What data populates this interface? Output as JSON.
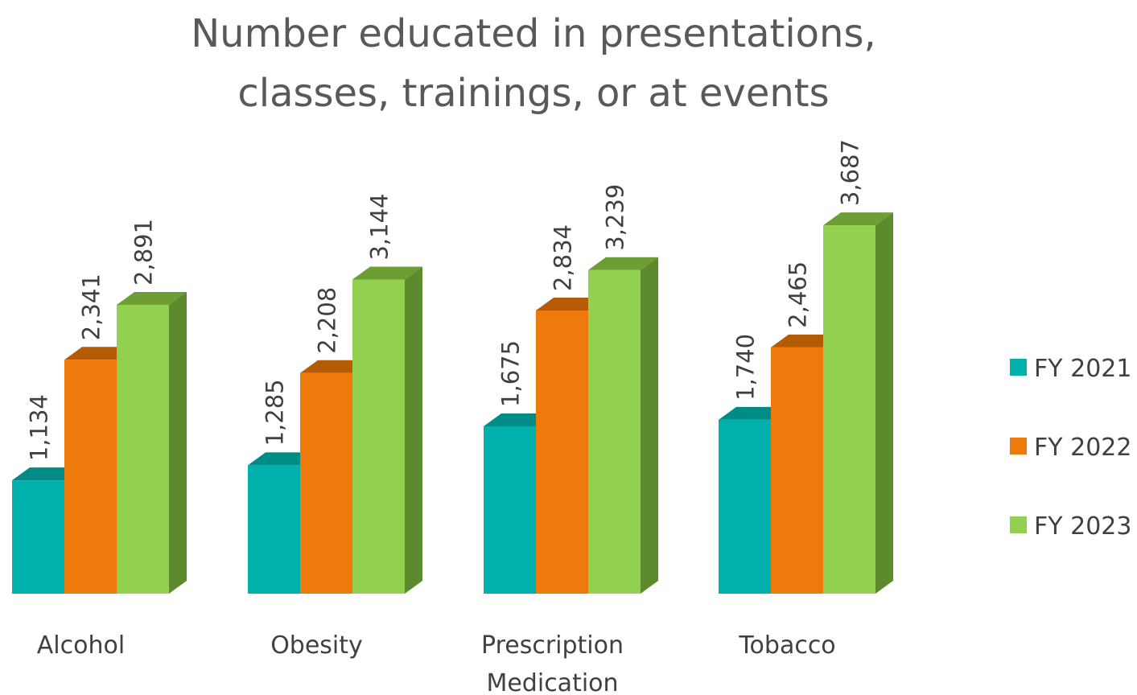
{
  "chart_data": {
    "type": "bar",
    "title_lines": [
      "Number educated in presentations,",
      "classes, trainings, or at events"
    ],
    "xlabel": "",
    "ylabel": "",
    "ylim": [
      0,
      4000
    ],
    "grid": false,
    "legend_position": "right",
    "categories": [
      [
        "Alcohol"
      ],
      [
        "Obesity"
      ],
      [
        "Prescription",
        "Medication"
      ],
      [
        "Tobacco"
      ]
    ],
    "series": [
      {
        "name": "FY 2021",
        "values": [
          1134,
          1285,
          1675,
          1740
        ],
        "labels": [
          "1,134",
          "1,285",
          "1,675",
          "1,740"
        ],
        "color": "#00B0AA",
        "top_color": "#008C86",
        "side_color": "#007A75"
      },
      {
        "name": "FY 2022",
        "values": [
          2341,
          2208,
          2834,
          2465
        ],
        "labels": [
          "2,341",
          "2,208",
          "2,834",
          "2,465"
        ],
        "color": "#EE7A0C",
        "top_color": "#B55A05",
        "side_color": "#A24F04"
      },
      {
        "name": "FY 2023",
        "values": [
          2891,
          3144,
          3239,
          3687
        ],
        "labels": [
          "2,891",
          "3,144",
          "3,239",
          "3,687"
        ],
        "color": "#92D050",
        "top_color": "#6C9E35",
        "side_color": "#5E8A2E"
      }
    ]
  }
}
